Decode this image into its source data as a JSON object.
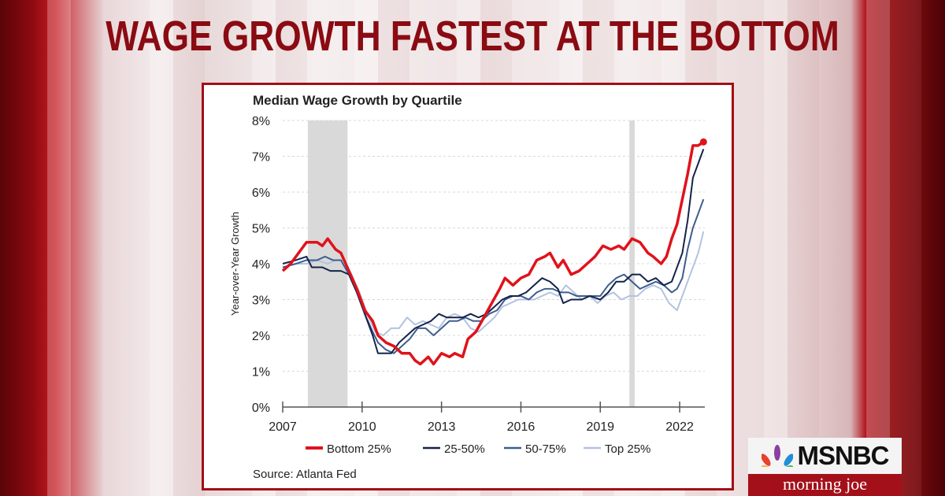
{
  "headline": "WAGE GROWTH FASTEST AT THE BOTTOM",
  "logo": {
    "brand": "MSNBC",
    "show": "morning joe",
    "icon": "nbc-peacock-icon"
  },
  "chart_data": {
    "type": "line",
    "title": "Median Wage Growth by Quartile",
    "ylabel": "Year-over-Year Growth",
    "xlabel": "",
    "source": "Source: Atlanta Fed",
    "xlim": [
      2007,
      2022.95
    ],
    "ylim": [
      0,
      8
    ],
    "x_ticks": [
      2007,
      2010,
      2013,
      2016,
      2019,
      2022
    ],
    "x_tick_labels": [
      "2007",
      "2010",
      "2013",
      "2016",
      "2019",
      "2022"
    ],
    "y_ticks": [
      0,
      1,
      2,
      3,
      4,
      5,
      6,
      7,
      8
    ],
    "y_tick_labels": [
      "0%",
      "1%",
      "2%",
      "3%",
      "4%",
      "5%",
      "6%",
      "7%",
      "8%"
    ],
    "grid": "horizontal dashed",
    "legend": "bottom",
    "recessions": [
      [
        2007.95,
        2009.45
      ],
      [
        2020.1,
        2020.3
      ]
    ],
    "series": [
      {
        "name": "Bottom 25%",
        "color": "#e0121b",
        "width": 3.5,
        "end_marker": true,
        "points": [
          [
            2007,
            3.8
          ],
          [
            2007.3,
            4.0
          ],
          [
            2007.6,
            4.3
          ],
          [
            2007.9,
            4.6
          ],
          [
            2008.3,
            4.6
          ],
          [
            2008.5,
            4.5
          ],
          [
            2008.7,
            4.7
          ],
          [
            2009.0,
            4.4
          ],
          [
            2009.2,
            4.3
          ],
          [
            2009.5,
            3.8
          ],
          [
            2009.8,
            3.3
          ],
          [
            2010.1,
            2.7
          ],
          [
            2010.4,
            2.4
          ],
          [
            2010.6,
            2.0
          ],
          [
            2010.9,
            1.8
          ],
          [
            2011.2,
            1.7
          ],
          [
            2011.5,
            1.5
          ],
          [
            2011.8,
            1.5
          ],
          [
            2012.0,
            1.3
          ],
          [
            2012.2,
            1.2
          ],
          [
            2012.5,
            1.4
          ],
          [
            2012.7,
            1.2
          ],
          [
            2013.0,
            1.5
          ],
          [
            2013.3,
            1.4
          ],
          [
            2013.5,
            1.5
          ],
          [
            2013.8,
            1.4
          ],
          [
            2014.0,
            1.9
          ],
          [
            2014.3,
            2.1
          ],
          [
            2014.6,
            2.5
          ],
          [
            2014.9,
            2.9
          ],
          [
            2015.2,
            3.3
          ],
          [
            2015.4,
            3.6
          ],
          [
            2015.7,
            3.4
          ],
          [
            2016.0,
            3.6
          ],
          [
            2016.3,
            3.7
          ],
          [
            2016.6,
            4.1
          ],
          [
            2016.9,
            4.2
          ],
          [
            2017.1,
            4.3
          ],
          [
            2017.4,
            3.9
          ],
          [
            2017.6,
            4.1
          ],
          [
            2017.9,
            3.7
          ],
          [
            2018.2,
            3.8
          ],
          [
            2018.5,
            4.0
          ],
          [
            2018.8,
            4.2
          ],
          [
            2019.1,
            4.5
          ],
          [
            2019.4,
            4.4
          ],
          [
            2019.7,
            4.5
          ],
          [
            2019.9,
            4.4
          ],
          [
            2020.2,
            4.7
          ],
          [
            2020.5,
            4.6
          ],
          [
            2020.8,
            4.3
          ],
          [
            2021.0,
            4.2
          ],
          [
            2021.3,
            4.0
          ],
          [
            2021.5,
            4.2
          ],
          [
            2021.7,
            4.7
          ],
          [
            2021.9,
            5.1
          ],
          [
            2022.1,
            5.8
          ],
          [
            2022.3,
            6.5
          ],
          [
            2022.5,
            7.3
          ],
          [
            2022.7,
            7.3
          ],
          [
            2022.9,
            7.4
          ]
        ]
      },
      {
        "name": "25-50%",
        "color": "#13234a",
        "width": 2,
        "points": [
          [
            2007,
            4.0
          ],
          [
            2007.5,
            4.1
          ],
          [
            2007.9,
            4.2
          ],
          [
            2008.1,
            3.9
          ],
          [
            2008.5,
            3.9
          ],
          [
            2008.8,
            3.8
          ],
          [
            2009.2,
            3.8
          ],
          [
            2009.5,
            3.7
          ],
          [
            2009.8,
            3.2
          ],
          [
            2010.1,
            2.6
          ],
          [
            2010.4,
            2.0
          ],
          [
            2010.6,
            1.5
          ],
          [
            2010.8,
            1.5
          ],
          [
            2011.1,
            1.5
          ],
          [
            2011.4,
            1.8
          ],
          [
            2011.7,
            2.0
          ],
          [
            2012.0,
            2.2
          ],
          [
            2012.3,
            2.3
          ],
          [
            2012.6,
            2.4
          ],
          [
            2012.9,
            2.6
          ],
          [
            2013.2,
            2.5
          ],
          [
            2013.5,
            2.5
          ],
          [
            2013.8,
            2.5
          ],
          [
            2014.1,
            2.6
          ],
          [
            2014.4,
            2.5
          ],
          [
            2014.7,
            2.6
          ],
          [
            2015.0,
            2.8
          ],
          [
            2015.3,
            3.0
          ],
          [
            2015.6,
            3.1
          ],
          [
            2015.9,
            3.1
          ],
          [
            2016.2,
            3.2
          ],
          [
            2016.5,
            3.4
          ],
          [
            2016.8,
            3.6
          ],
          [
            2017.1,
            3.5
          ],
          [
            2017.4,
            3.3
          ],
          [
            2017.6,
            2.9
          ],
          [
            2017.9,
            3.0
          ],
          [
            2018.3,
            3.0
          ],
          [
            2018.6,
            3.1
          ],
          [
            2019.0,
            3.0
          ],
          [
            2019.3,
            3.2
          ],
          [
            2019.6,
            3.5
          ],
          [
            2019.9,
            3.5
          ],
          [
            2020.2,
            3.7
          ],
          [
            2020.5,
            3.7
          ],
          [
            2020.8,
            3.5
          ],
          [
            2021.1,
            3.6
          ],
          [
            2021.4,
            3.4
          ],
          [
            2021.7,
            3.5
          ],
          [
            2021.9,
            3.9
          ],
          [
            2022.1,
            4.3
          ],
          [
            2022.3,
            5.2
          ],
          [
            2022.5,
            6.4
          ],
          [
            2022.7,
            6.8
          ],
          [
            2022.9,
            7.2
          ]
        ]
      },
      {
        "name": "50-75%",
        "color": "#3d5d8f",
        "width": 2,
        "points": [
          [
            2007,
            3.9
          ],
          [
            2007.5,
            4.0
          ],
          [
            2007.9,
            4.1
          ],
          [
            2008.3,
            4.1
          ],
          [
            2008.6,
            4.2
          ],
          [
            2008.9,
            4.1
          ],
          [
            2009.2,
            4.1
          ],
          [
            2009.5,
            3.7
          ],
          [
            2009.8,
            3.2
          ],
          [
            2010.1,
            2.6
          ],
          [
            2010.4,
            2.1
          ],
          [
            2010.6,
            1.8
          ],
          [
            2010.9,
            1.6
          ],
          [
            2011.2,
            1.5
          ],
          [
            2011.5,
            1.7
          ],
          [
            2011.8,
            1.9
          ],
          [
            2012.1,
            2.2
          ],
          [
            2012.4,
            2.2
          ],
          [
            2012.7,
            2.0
          ],
          [
            2013.0,
            2.2
          ],
          [
            2013.3,
            2.4
          ],
          [
            2013.6,
            2.4
          ],
          [
            2013.9,
            2.5
          ],
          [
            2014.2,
            2.4
          ],
          [
            2014.5,
            2.4
          ],
          [
            2014.8,
            2.6
          ],
          [
            2015.1,
            2.7
          ],
          [
            2015.4,
            3.0
          ],
          [
            2015.7,
            3.1
          ],
          [
            2016.0,
            3.1
          ],
          [
            2016.3,
            3.0
          ],
          [
            2016.6,
            3.2
          ],
          [
            2016.9,
            3.3
          ],
          [
            2017.2,
            3.3
          ],
          [
            2017.5,
            3.2
          ],
          [
            2017.8,
            3.2
          ],
          [
            2018.1,
            3.1
          ],
          [
            2018.4,
            3.1
          ],
          [
            2018.7,
            3.1
          ],
          [
            2019.0,
            3.1
          ],
          [
            2019.3,
            3.4
          ],
          [
            2019.6,
            3.6
          ],
          [
            2019.9,
            3.7
          ],
          [
            2020.2,
            3.5
          ],
          [
            2020.5,
            3.3
          ],
          [
            2020.8,
            3.4
          ],
          [
            2021.1,
            3.5
          ],
          [
            2021.4,
            3.4
          ],
          [
            2021.7,
            3.2
          ],
          [
            2021.9,
            3.3
          ],
          [
            2022.1,
            3.6
          ],
          [
            2022.3,
            4.4
          ],
          [
            2022.5,
            5.0
          ],
          [
            2022.7,
            5.4
          ],
          [
            2022.9,
            5.8
          ]
        ]
      },
      {
        "name": "Top 25%",
        "color": "#b3c3e0",
        "width": 2,
        "points": [
          [
            2007,
            3.9
          ],
          [
            2007.5,
            4.0
          ],
          [
            2007.9,
            4.0
          ],
          [
            2008.3,
            4.1
          ],
          [
            2008.7,
            4.0
          ],
          [
            2009.0,
            4.1
          ],
          [
            2009.3,
            4.1
          ],
          [
            2009.6,
            3.7
          ],
          [
            2009.9,
            3.2
          ],
          [
            2010.2,
            2.6
          ],
          [
            2010.5,
            2.1
          ],
          [
            2010.8,
            2.0
          ],
          [
            2011.1,
            2.2
          ],
          [
            2011.4,
            2.2
          ],
          [
            2011.7,
            2.5
          ],
          [
            2012.0,
            2.3
          ],
          [
            2012.3,
            2.4
          ],
          [
            2012.6,
            2.3
          ],
          [
            2012.9,
            2.2
          ],
          [
            2013.2,
            2.5
          ],
          [
            2013.5,
            2.6
          ],
          [
            2013.8,
            2.5
          ],
          [
            2014.1,
            2.2
          ],
          [
            2014.4,
            2.1
          ],
          [
            2014.7,
            2.3
          ],
          [
            2015.0,
            2.5
          ],
          [
            2015.3,
            2.8
          ],
          [
            2015.6,
            2.9
          ],
          [
            2015.9,
            3.0
          ],
          [
            2016.2,
            3.0
          ],
          [
            2016.5,
            3.0
          ],
          [
            2016.8,
            3.1
          ],
          [
            2017.1,
            3.2
          ],
          [
            2017.4,
            3.1
          ],
          [
            2017.7,
            3.4
          ],
          [
            2018.0,
            3.2
          ],
          [
            2018.3,
            3.0
          ],
          [
            2018.6,
            3.1
          ],
          [
            2018.9,
            2.9
          ],
          [
            2019.2,
            3.1
          ],
          [
            2019.5,
            3.2
          ],
          [
            2019.8,
            3.0
          ],
          [
            2020.1,
            3.1
          ],
          [
            2020.4,
            3.1
          ],
          [
            2020.7,
            3.3
          ],
          [
            2021.0,
            3.4
          ],
          [
            2021.3,
            3.3
          ],
          [
            2021.6,
            2.9
          ],
          [
            2021.9,
            2.7
          ],
          [
            2022.1,
            3.1
          ],
          [
            2022.3,
            3.5
          ],
          [
            2022.5,
            3.9
          ],
          [
            2022.7,
            4.3
          ],
          [
            2022.9,
            4.9
          ]
        ]
      }
    ]
  }
}
